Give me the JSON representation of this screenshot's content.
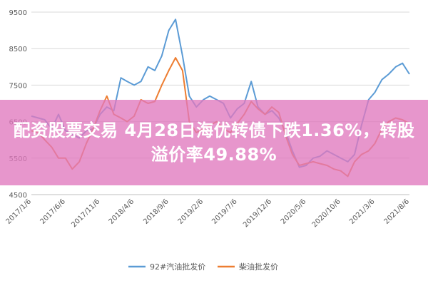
{
  "headline": {
    "line1": "配资股票交易 4月28日海优转债下跌1.36%，转股",
    "line2": "溢价率49.88%"
  },
  "chart_data": {
    "type": "line",
    "title": "",
    "xlabel": "",
    "ylabel": "",
    "ylim": [
      4500,
      9500
    ],
    "yticks": [
      4500,
      5500,
      6500,
      7500,
      8500,
      9500
    ],
    "xlim": [
      "2017-01-06",
      "2021-08-06"
    ],
    "xticks": [
      "2017/1/6",
      "2017/6/6",
      "2017/11/6",
      "2018/4/6",
      "2018/9/6",
      "2019/2/6",
      "2019/7/6",
      "2019/12/6",
      "2020/5/6",
      "2020/10/6",
      "2021/3/6",
      "2021/8/6"
    ],
    "grid": "horizontal",
    "legend": "bottom",
    "series": [
      {
        "name": "92#汽油批发价",
        "color": "#5b9bd5",
        "points": [
          [
            "2017-01-06",
            6650
          ],
          [
            "2017-02-06",
            6600
          ],
          [
            "2017-03-06",
            6550
          ],
          [
            "2017-04-06",
            6300
          ],
          [
            "2017-05-06",
            6700
          ],
          [
            "2017-06-06",
            6250
          ],
          [
            "2017-07-06",
            6150
          ],
          [
            "2017-08-06",
            6050
          ],
          [
            "2017-09-06",
            6250
          ],
          [
            "2017-10-06",
            6300
          ],
          [
            "2017-11-06",
            6700
          ],
          [
            "2017-12-06",
            6900
          ],
          [
            "2018-01-06",
            6800
          ],
          [
            "2018-02-06",
            7700
          ],
          [
            "2018-03-06",
            7600
          ],
          [
            "2018-04-06",
            7500
          ],
          [
            "2018-05-06",
            7600
          ],
          [
            "2018-06-06",
            8000
          ],
          [
            "2018-07-06",
            7900
          ],
          [
            "2018-08-06",
            8300
          ],
          [
            "2018-09-06",
            9000
          ],
          [
            "2018-10-06",
            9300
          ],
          [
            "2018-11-06",
            8300
          ],
          [
            "2018-12-06",
            7200
          ],
          [
            "2019-01-06",
            6900
          ],
          [
            "2019-02-06",
            7100
          ],
          [
            "2019-03-06",
            7200
          ],
          [
            "2019-04-06",
            7100
          ],
          [
            "2019-05-06",
            7000
          ],
          [
            "2019-06-06",
            6600
          ],
          [
            "2019-07-06",
            6850
          ],
          [
            "2019-08-06",
            7000
          ],
          [
            "2019-09-06",
            7600
          ],
          [
            "2019-10-06",
            6900
          ],
          [
            "2019-11-06",
            6700
          ],
          [
            "2019-12-06",
            6800
          ],
          [
            "2020-01-06",
            6600
          ],
          [
            "2020-02-06",
            6200
          ],
          [
            "2020-03-06",
            5700
          ],
          [
            "2020-04-06",
            5250
          ],
          [
            "2020-05-06",
            5300
          ],
          [
            "2020-06-06",
            5500
          ],
          [
            "2020-07-06",
            5550
          ],
          [
            "2020-08-06",
            5700
          ],
          [
            "2020-09-06",
            5600
          ],
          [
            "2020-10-06",
            5500
          ],
          [
            "2020-11-06",
            5400
          ],
          [
            "2020-12-06",
            5600
          ],
          [
            "2021-01-06",
            6400
          ],
          [
            "2021-02-06",
            7100
          ],
          [
            "2021-03-06",
            7300
          ],
          [
            "2021-04-06",
            7650
          ],
          [
            "2021-05-06",
            7800
          ],
          [
            "2021-06-06",
            8000
          ],
          [
            "2021-07-06",
            8100
          ],
          [
            "2021-08-06",
            7800
          ]
        ]
      },
      {
        "name": "柴油批发价",
        "color": "#ed7d31",
        "points": [
          [
            "2017-01-06",
            6250
          ],
          [
            "2017-02-06",
            6200
          ],
          [
            "2017-03-06",
            6000
          ],
          [
            "2017-04-06",
            5800
          ],
          [
            "2017-05-06",
            5500
          ],
          [
            "2017-06-06",
            5500
          ],
          [
            "2017-07-06",
            5200
          ],
          [
            "2017-08-06",
            5400
          ],
          [
            "2017-09-06",
            5900
          ],
          [
            "2017-10-06",
            6300
          ],
          [
            "2017-11-06",
            6800
          ],
          [
            "2017-12-06",
            7200
          ],
          [
            "2018-01-06",
            6700
          ],
          [
            "2018-02-06",
            6600
          ],
          [
            "2018-03-06",
            6500
          ],
          [
            "2018-04-06",
            6650
          ],
          [
            "2018-05-06",
            7100
          ],
          [
            "2018-06-06",
            7000
          ],
          [
            "2018-07-06",
            7050
          ],
          [
            "2018-08-06",
            7500
          ],
          [
            "2018-09-06",
            7900
          ],
          [
            "2018-10-06",
            8250
          ],
          [
            "2018-11-06",
            7900
          ],
          [
            "2018-12-06",
            6500
          ],
          [
            "2019-01-06",
            6200
          ],
          [
            "2019-02-06",
            6300
          ],
          [
            "2019-03-06",
            6400
          ],
          [
            "2019-04-06",
            6500
          ],
          [
            "2019-05-06",
            6300
          ],
          [
            "2019-06-06",
            6200
          ],
          [
            "2019-07-06",
            6450
          ],
          [
            "2019-08-06",
            6700
          ],
          [
            "2019-09-06",
            7050
          ],
          [
            "2019-10-06",
            6850
          ],
          [
            "2019-11-06",
            6700
          ],
          [
            "2019-12-06",
            6900
          ],
          [
            "2020-01-06",
            6750
          ],
          [
            "2020-02-06",
            6100
          ],
          [
            "2020-03-06",
            5600
          ],
          [
            "2020-04-06",
            5300
          ],
          [
            "2020-05-06",
            5350
          ],
          [
            "2020-06-06",
            5400
          ],
          [
            "2020-07-06",
            5350
          ],
          [
            "2020-08-06",
            5300
          ],
          [
            "2020-09-06",
            5200
          ],
          [
            "2020-10-06",
            5150
          ],
          [
            "2020-11-06",
            5000
          ],
          [
            "2020-12-06",
            5400
          ],
          [
            "2021-01-06",
            5600
          ],
          [
            "2021-02-06",
            5700
          ],
          [
            "2021-03-06",
            5900
          ],
          [
            "2021-04-06",
            6300
          ],
          [
            "2021-05-06",
            6500
          ],
          [
            "2021-06-06",
            6600
          ],
          [
            "2021-07-06",
            6550
          ],
          [
            "2021-08-06",
            6450
          ]
        ]
      }
    ]
  }
}
